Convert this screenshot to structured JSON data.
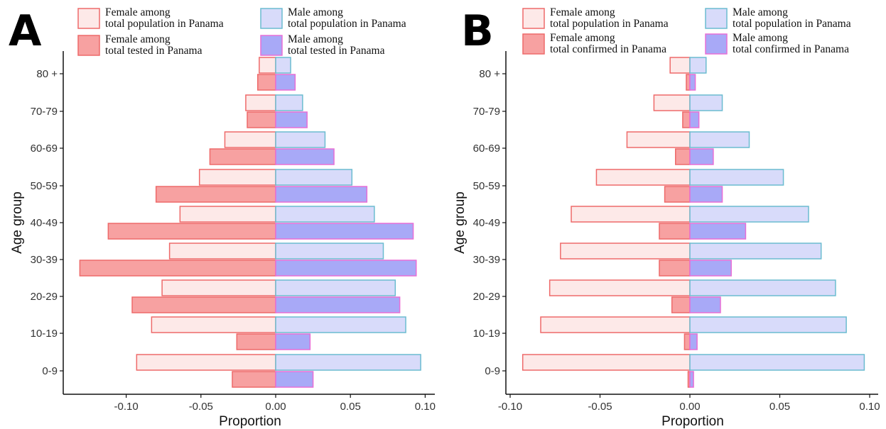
{
  "chart_data": [
    {
      "panel_label": "A",
      "type": "bar",
      "orientation": "horizontal",
      "categories": [
        "0-9",
        "10-19",
        "20-29",
        "30-39",
        "40-49",
        "50-59",
        "60-69",
        "70-79",
        "80 +"
      ],
      "xlabel": "Proportion",
      "ylabel": "Age group",
      "xlim": [
        -0.14,
        0.105
      ],
      "xticks": [
        -0.1,
        -0.05,
        0.0,
        0.05,
        0.1
      ],
      "xtick_labels": [
        "-0.10",
        "-0.05",
        "0.00",
        "0.05",
        "0.10"
      ],
      "grid": false,
      "legend_position": "top",
      "series": [
        {
          "name": "Female among\ntotal population in Panama",
          "values": [
            -0.093,
            -0.083,
            -0.076,
            -0.071,
            -0.064,
            -0.051,
            -0.034,
            -0.02,
            -0.011
          ]
        },
        {
          "name": "Female among\ntotal tested in Panama",
          "values": [
            -0.029,
            -0.026,
            -0.096,
            -0.131,
            -0.112,
            -0.08,
            -0.044,
            -0.019,
            -0.012
          ]
        },
        {
          "name": "Male among\ntotal population  in Panama",
          "values": [
            0.097,
            0.087,
            0.08,
            0.072,
            0.066,
            0.051,
            0.033,
            0.018,
            0.01
          ]
        },
        {
          "name": "Male among\ntotal tested in Panama",
          "values": [
            0.025,
            0.023,
            0.083,
            0.094,
            0.092,
            0.061,
            0.039,
            0.021,
            0.013
          ]
        }
      ],
      "colors": {
        "female_population": "#fde9e8",
        "female_sample": "#f7a1a1",
        "female_edge": "#ee6a6a",
        "male_population": "#d8dbfa",
        "male_sample": "#a8a9f7",
        "male_pop_edge": "#6bbcd0",
        "male_sample_edge": "#e86fd6"
      }
    },
    {
      "panel_label": "B",
      "type": "bar",
      "orientation": "horizontal",
      "categories": [
        "0-9",
        "10-19",
        "20-29",
        "30-39",
        "40-49",
        "50-59",
        "60-69",
        "70-79",
        "80 +"
      ],
      "xlabel": "Proportion",
      "ylabel": "Age group",
      "xlim": [
        -0.103,
        0.103
      ],
      "xticks": [
        -0.1,
        -0.05,
        0.0,
        0.05,
        0.1
      ],
      "xtick_labels": [
        "-0.10",
        "-0.05",
        "0.00",
        "0.05",
        "0.10"
      ],
      "grid": false,
      "legend_position": "top",
      "series": [
        {
          "name": "Female among\ntotal population in Panama",
          "values": [
            -0.093,
            -0.083,
            -0.078,
            -0.072,
            -0.066,
            -0.052,
            -0.035,
            -0.02,
            -0.011
          ]
        },
        {
          "name": "Female among\ntotal confirmed in Panama",
          "values": [
            -0.001,
            -0.003,
            -0.01,
            -0.017,
            -0.017,
            -0.014,
            -0.008,
            -0.004,
            -0.002
          ]
        },
        {
          "name": "Male among\ntotal population  in Panama",
          "values": [
            0.097,
            0.087,
            0.081,
            0.073,
            0.066,
            0.052,
            0.033,
            0.018,
            0.009
          ]
        },
        {
          "name": "Male among\ntotal confirmed in Panama",
          "values": [
            0.002,
            0.004,
            0.017,
            0.023,
            0.031,
            0.018,
            0.013,
            0.005,
            0.003
          ]
        }
      ],
      "colors": {
        "female_population": "#fde9e8",
        "female_sample": "#f7a1a1",
        "female_edge": "#ee6a6a",
        "male_population": "#d8dbfa",
        "male_sample": "#a8a9f7",
        "male_pop_edge": "#6bbcd0",
        "male_sample_edge": "#e86fd6"
      }
    }
  ]
}
